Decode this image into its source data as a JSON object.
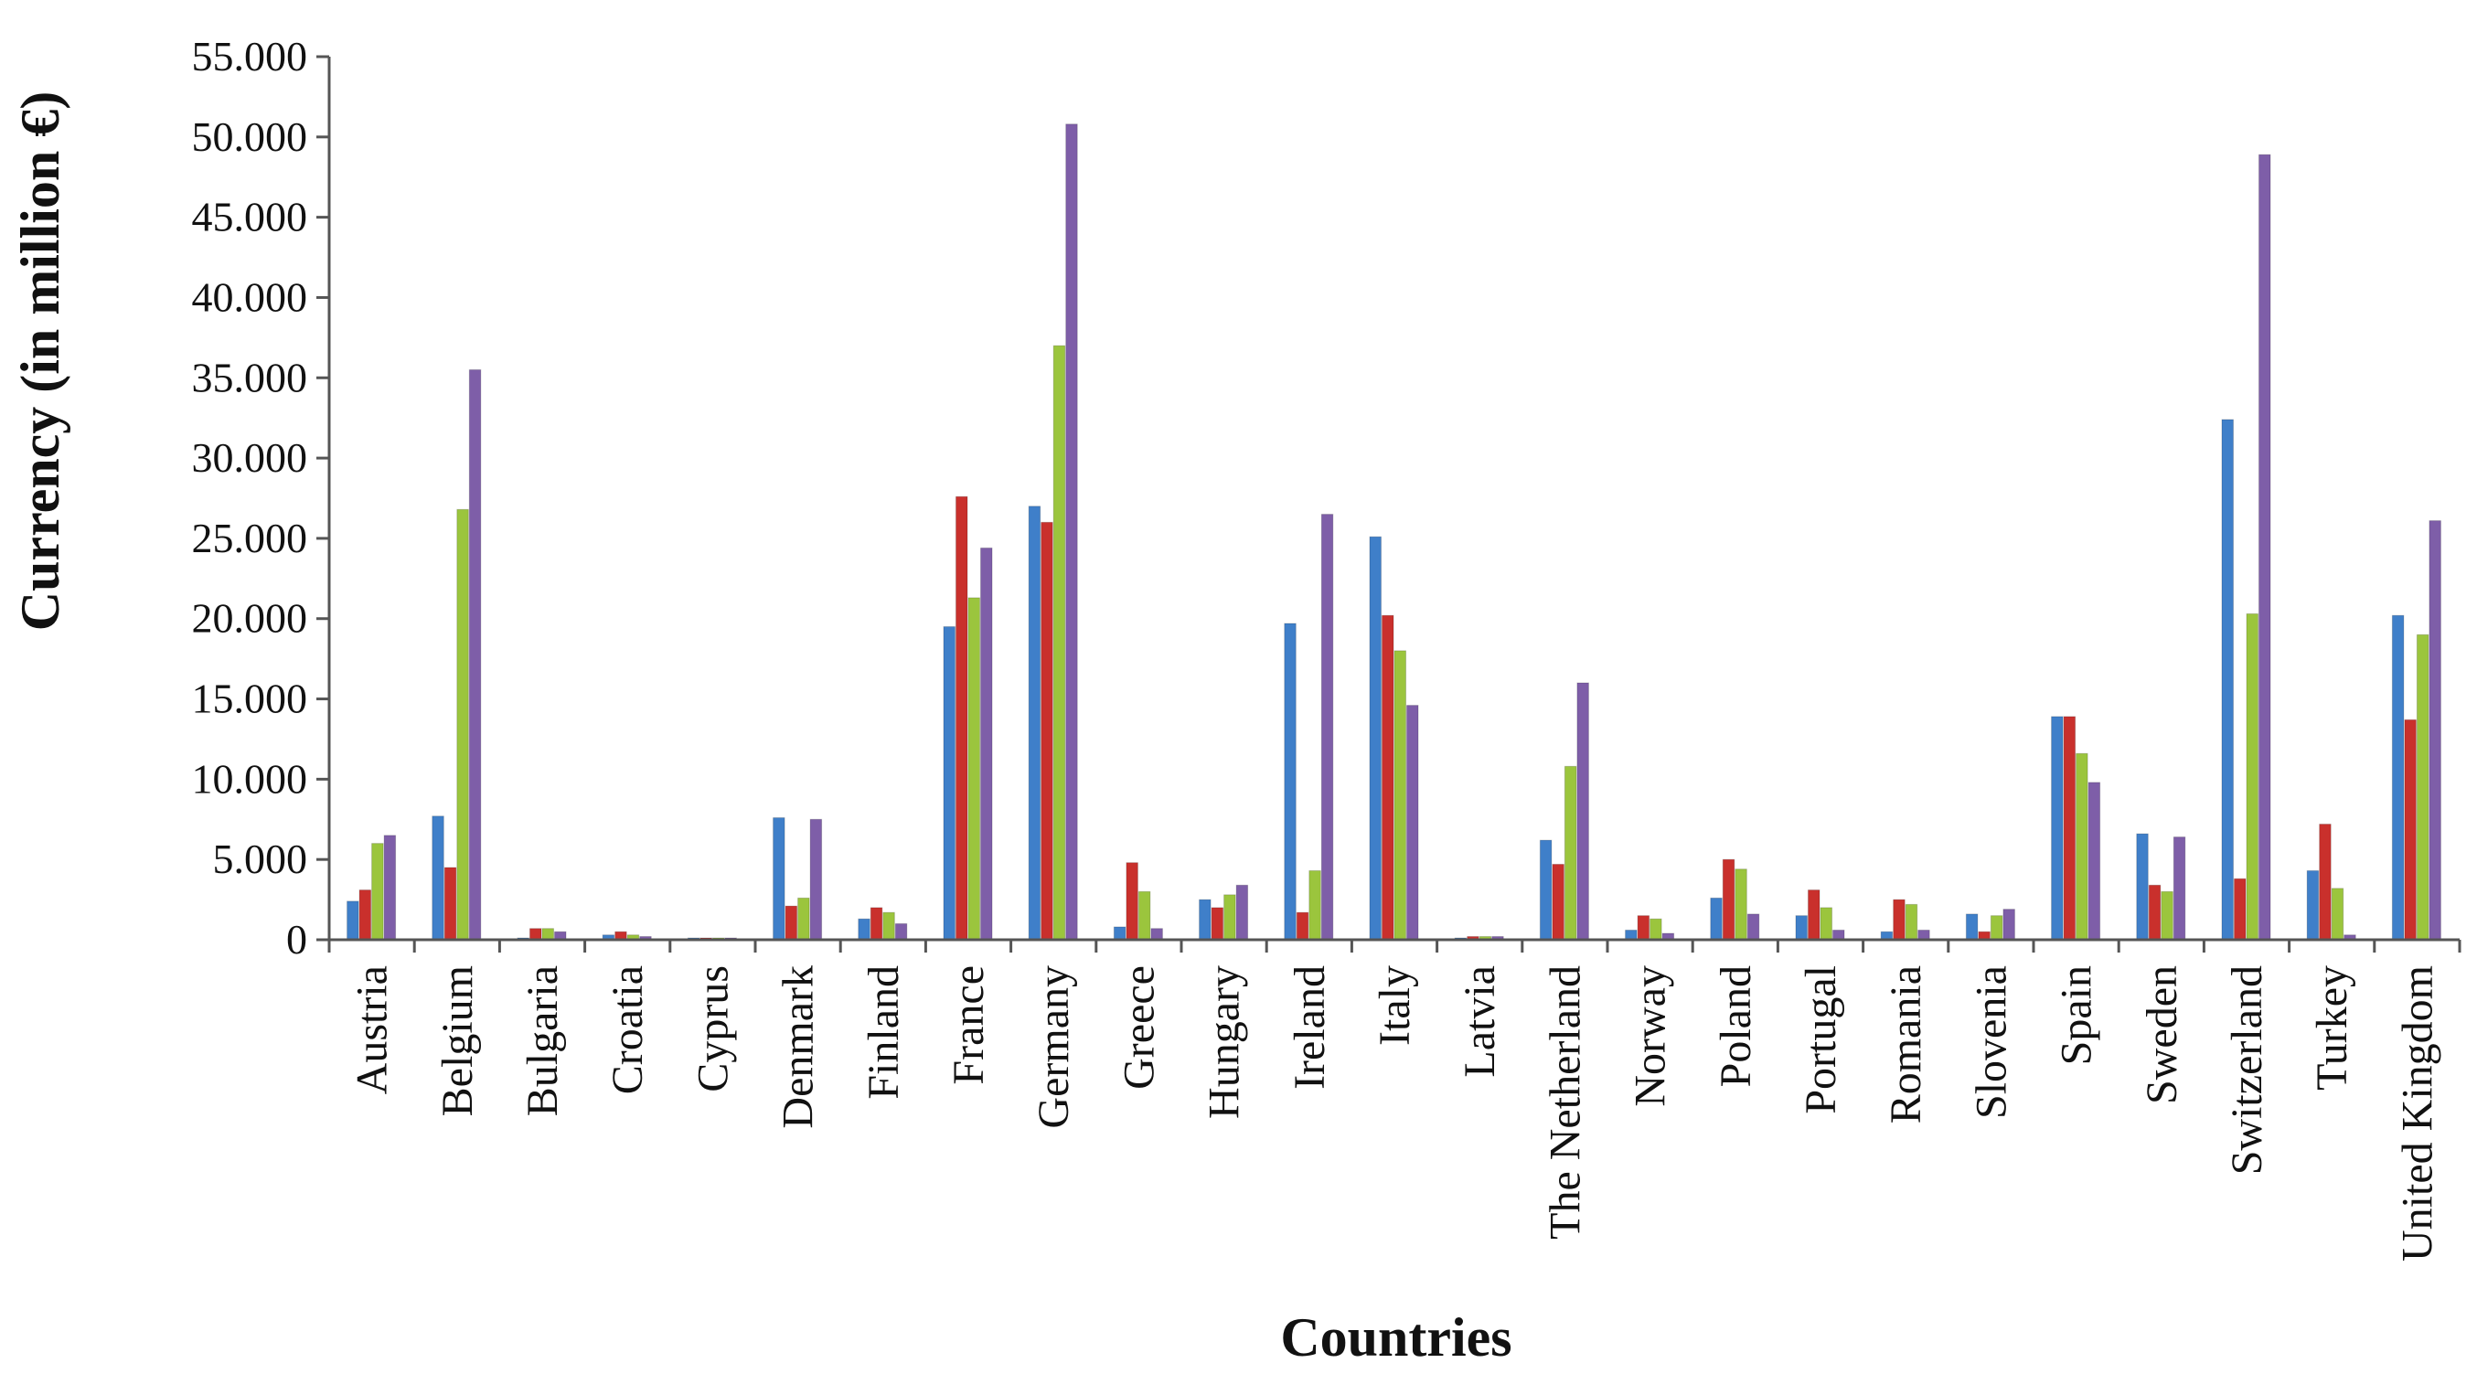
{
  "chart_data": {
    "type": "bar",
    "title": "",
    "xlabel": "Countries",
    "ylabel": "Currency (in million €)",
    "ylim": [
      0,
      55000
    ],
    "yticks": [
      0,
      5000,
      10000,
      15000,
      20000,
      25000,
      30000,
      35000,
      40000,
      45000,
      50000,
      55000
    ],
    "ytick_labels": [
      "0",
      "5.000",
      "10.000",
      "15.000",
      "20.000",
      "25.000",
      "30.000",
      "35.000",
      "40.000",
      "45.000",
      "50.000",
      "55.000"
    ],
    "grid": false,
    "legend": "none",
    "categories": [
      "Austria",
      "Belgium",
      "Bulgaria",
      "Croatia",
      "Cyprus",
      "Denmark",
      "Finland",
      "France",
      "Germany",
      "Greece",
      "Hungary",
      "Ireland",
      "Italy",
      "Latvia",
      "The Netherland",
      "Norway",
      "Poland",
      "Portugal",
      "Romania",
      "Slovenia",
      "Spain",
      "Sweden",
      "Switzerland",
      "Turkey",
      "United Kingdom"
    ],
    "series": [
      {
        "color": "#3f7fc9",
        "values": [
          2400,
          7700,
          100,
          300,
          100,
          7600,
          1300,
          19500,
          27000,
          800,
          2500,
          19700,
          25100,
          100,
          6200,
          600,
          2600,
          1500,
          500,
          1600,
          13900,
          6600,
          32400,
          4300,
          20200
        ]
      },
      {
        "color": "#c9302c",
        "values": [
          3100,
          4500,
          700,
          500,
          100,
          2100,
          2000,
          27600,
          26000,
          4800,
          2000,
          1700,
          20200,
          200,
          4700,
          1500,
          5000,
          3100,
          2500,
          500,
          13900,
          3400,
          3800,
          7200,
          13700
        ]
      },
      {
        "color": "#9bc53d",
        "values": [
          6000,
          26800,
          700,
          300,
          100,
          2600,
          1700,
          21300,
          37000,
          3000,
          2800,
          4300,
          18000,
          200,
          10800,
          1300,
          4400,
          2000,
          2200,
          1500,
          11600,
          3000,
          20300,
          3200,
          19000
        ]
      },
      {
        "color": "#7e5ea8",
        "values": [
          6500,
          35500,
          500,
          200,
          100,
          7500,
          1000,
          24400,
          50800,
          700,
          3400,
          26500,
          14600,
          200,
          16000,
          400,
          1600,
          600,
          600,
          1900,
          9800,
          6400,
          48900,
          300,
          26100
        ]
      }
    ]
  }
}
